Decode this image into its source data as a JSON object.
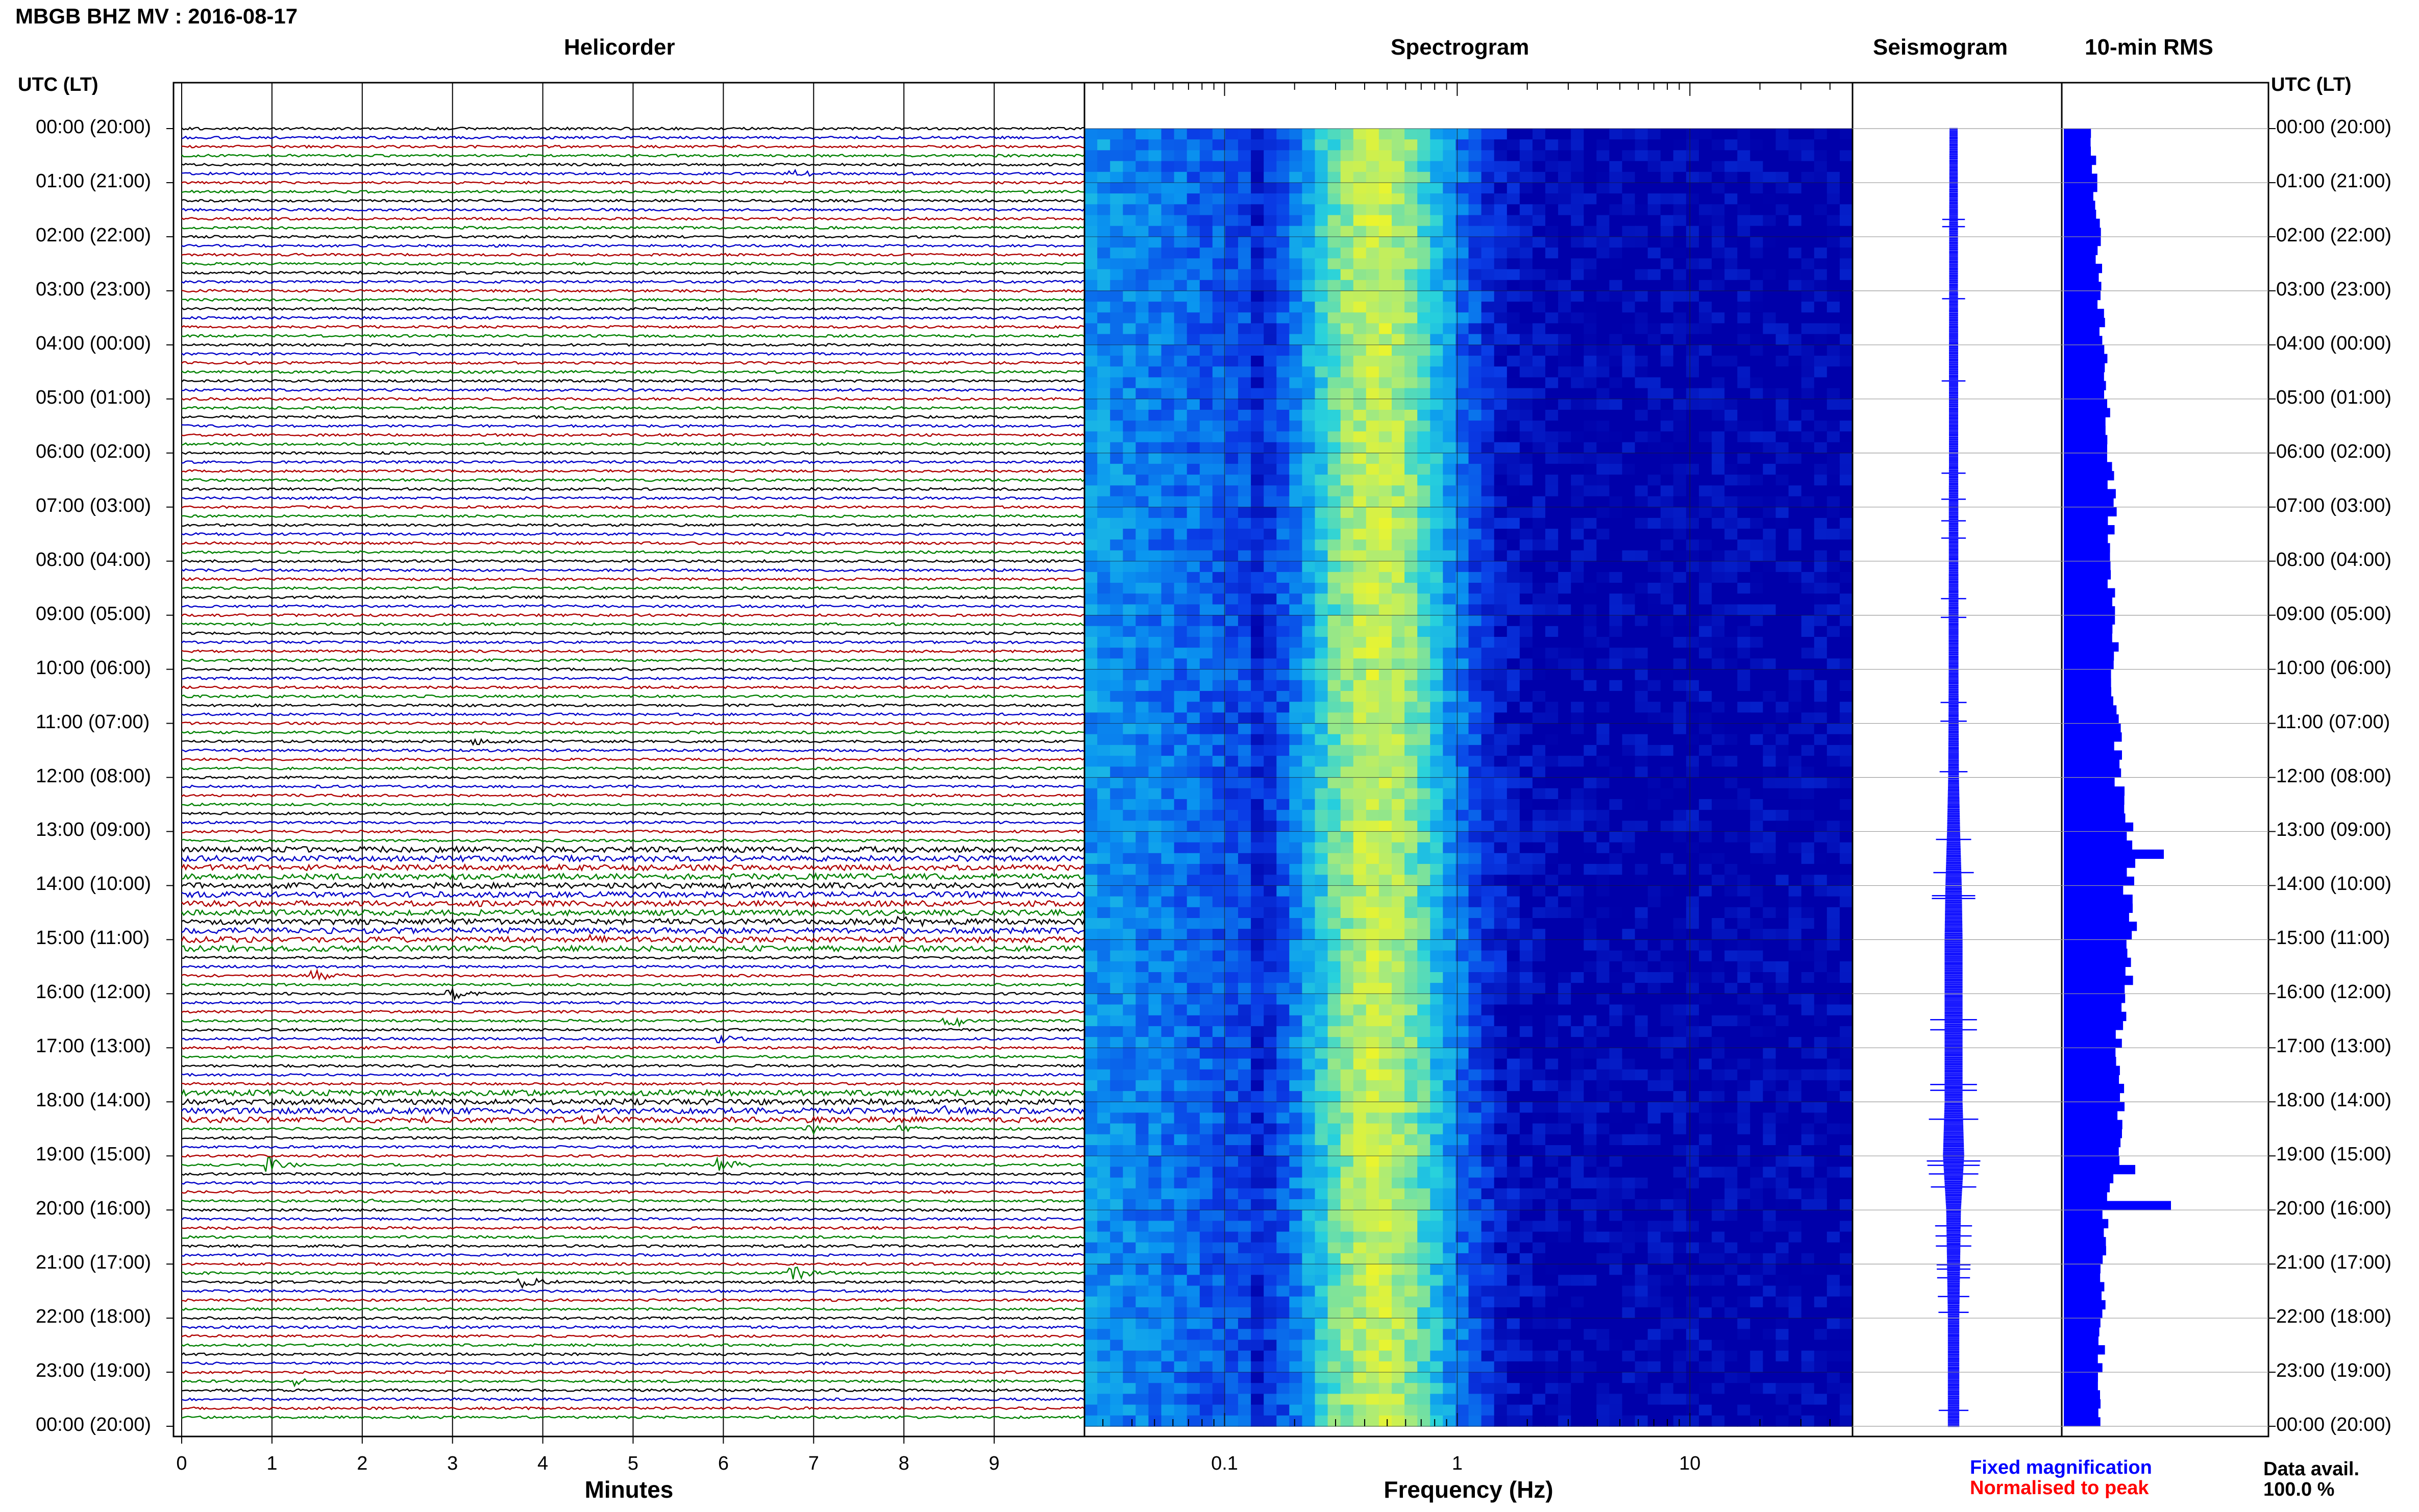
{
  "page": {
    "title": "MBGB BHZ MV : 2016-08-17",
    "utc_label_left": "UTC (LT)",
    "utc_label_right": "UTC (LT)"
  },
  "panels": {
    "helicorder": "Helicorder",
    "spectrogram": "Spectrogram",
    "seismogram": "Seismogram",
    "rms": "10-min RMS"
  },
  "time_labels": [
    "00:00 (20:00)",
    "01:00 (21:00)",
    "02:00 (22:00)",
    "03:00 (23:00)",
    "04:00 (00:00)",
    "05:00 (01:00)",
    "06:00 (02:00)",
    "07:00 (03:00)",
    "08:00 (04:00)",
    "09:00 (05:00)",
    "10:00 (06:00)",
    "11:00 (07:00)",
    "12:00 (08:00)",
    "13:00 (09:00)",
    "14:00 (10:00)",
    "15:00 (11:00)",
    "16:00 (12:00)",
    "17:00 (13:00)",
    "18:00 (14:00)",
    "19:00 (15:00)",
    "20:00 (16:00)",
    "21:00 (17:00)",
    "22:00 (18:00)",
    "23:00 (19:00)",
    "00:00 (20:00)"
  ],
  "footer": {
    "fixed_magnification": "Fixed magnification",
    "normalised_to_peak": "Normalised to peak",
    "data_avail_label": "Data avail.",
    "data_avail_value": "100.0 %"
  },
  "colors": {
    "helicorder_trace_cycle": [
      "#000000",
      "#0000c8",
      "#b00000",
      "#008000"
    ],
    "fixed_magnification": "#0000ff",
    "normalised_to_peak": "#ff0000",
    "seismogram": "#0000ff",
    "rms_bars": "#0000ff",
    "spectrogram_background": "#0000b4"
  },
  "chart_data": [
    {
      "type": "line",
      "name": "Helicorder",
      "xlabel": "Minutes",
      "xticks": [
        0,
        1,
        2,
        3,
        4,
        5,
        6,
        7,
        8,
        9
      ],
      "xlim": [
        0,
        10
      ],
      "rows_per_hour": 6,
      "hours": 24,
      "events": [
        {
          "hour": 0.83,
          "minute": 6.8,
          "amp": 0.4
        },
        {
          "hour": 11.33,
          "minute": 3.3,
          "amp": 0.6
        },
        {
          "hour": 13.5,
          "minute": 2.5,
          "amp": 0.3
        },
        {
          "hour": 14.67,
          "minute": 8.0,
          "amp": 0.8
        },
        {
          "hour": 15.0,
          "minute": 4.4,
          "amp": 0.7
        },
        {
          "hour": 15.67,
          "minute": 1.5,
          "amp": 0.9
        },
        {
          "hour": 16.0,
          "minute": 3.0,
          "amp": 0.8
        },
        {
          "hour": 16.5,
          "minute": 8.5,
          "amp": 1.0
        },
        {
          "hour": 16.83,
          "minute": 6.0,
          "amp": 0.6
        },
        {
          "hour": 18.17,
          "minute": 8.5,
          "amp": 0.7
        },
        {
          "hour": 18.33,
          "minute": 4.5,
          "amp": 0.8
        },
        {
          "hour": 18.5,
          "minute": 7.0,
          "amp": 0.5
        },
        {
          "hour": 18.5,
          "minute": 8.0,
          "amp": 0.4
        },
        {
          "hour": 19.17,
          "minute": 1.0,
          "amp": 1.0
        },
        {
          "hour": 19.17,
          "minute": 6.0,
          "amp": 0.8
        },
        {
          "hour": 19.83,
          "minute": 2.0,
          "amp": 0.3
        },
        {
          "hour": 21.17,
          "minute": 6.8,
          "amp": 0.9
        },
        {
          "hour": 21.33,
          "minute": 3.8,
          "amp": 0.6
        },
        {
          "hour": 23.17,
          "minute": 1.3,
          "amp": 0.5
        }
      ]
    },
    {
      "type": "heatmap",
      "name": "Spectrogram",
      "xlabel": "Frequency (Hz)",
      "xscale": "log",
      "xlim": [
        0.025,
        50
      ],
      "xtick_labels": [
        "0.1",
        "1",
        "10"
      ],
      "xtick_values": [
        0.1,
        1,
        10
      ],
      "peak_frequency_hz": 0.45
    },
    {
      "type": "line",
      "name": "Seismogram",
      "amplitude_by_hour": [
        0.25,
        0.26,
        0.27,
        0.27,
        0.28,
        0.28,
        0.28,
        0.29,
        0.29,
        0.3,
        0.3,
        0.31,
        0.33,
        0.4,
        0.5,
        0.55,
        0.55,
        0.55,
        0.55,
        0.65,
        0.45,
        0.4,
        0.35,
        0.35,
        0.35
      ]
    },
    {
      "type": "bar",
      "name": "10-min RMS",
      "orientation": "horizontal",
      "note": "one bar per 10-minute interval, relative length",
      "values_by_hour": [
        0.4,
        0.45,
        0.48,
        0.5,
        0.55,
        0.6,
        0.65,
        0.68,
        0.65,
        0.7,
        0.7,
        0.75,
        0.75,
        0.95,
        0.9,
        0.95,
        0.85,
        0.75,
        0.78,
        0.8,
        0.6,
        0.55,
        0.55,
        0.5,
        0.5
      ],
      "spikes": [
        {
          "hour": 13.33,
          "value": 1.4
        },
        {
          "hour": 13.5,
          "value": 1.0
        },
        {
          "hour": 19.17,
          "value": 1.0
        },
        {
          "hour": 19.83,
          "value": 1.5
        }
      ]
    }
  ]
}
